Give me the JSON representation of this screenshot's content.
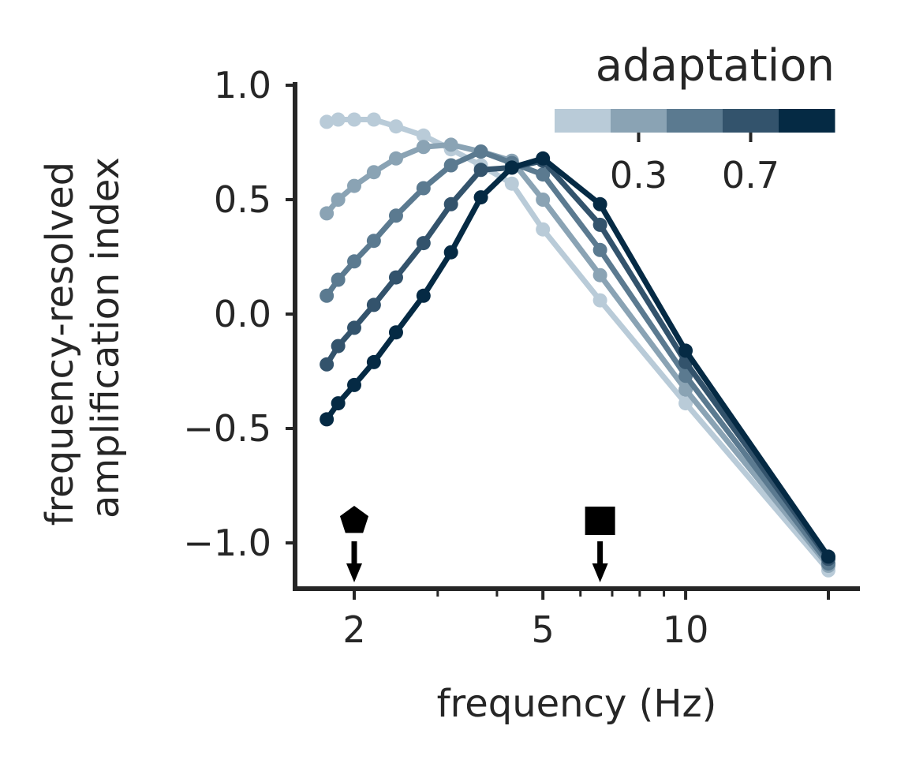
{
  "chart_data": {
    "type": "line",
    "title": "",
    "xlabel": "frequency (Hz)",
    "ylabel": [
      "frequency-resolved",
      "amplification index"
    ],
    "x_scale": "log",
    "xlim": [
      1.7,
      20
    ],
    "ylim": [
      -1.2,
      1.0
    ],
    "x_ticks": [
      2,
      5,
      10
    ],
    "x_tick_labels": [
      "2",
      "5",
      "10"
    ],
    "y_ticks": [
      1.0,
      0.5,
      0.0,
      -0.5,
      -1.0
    ],
    "y_tick_labels": [
      "1.0",
      "0.5",
      "0.0",
      "−0.5",
      "−1.0"
    ],
    "grid": false,
    "x": [
      1.75,
      1.85,
      2.0,
      2.2,
      2.45,
      2.8,
      3.2,
      3.7,
      4.3,
      5.0,
      6.6,
      10.0,
      20.0
    ],
    "series": [
      {
        "color": "#b9cbd8",
        "values": [
          0.84,
          0.85,
          0.85,
          0.85,
          0.82,
          0.78,
          0.72,
          0.65,
          0.57,
          0.37,
          0.06,
          -0.39,
          -1.12
        ]
      },
      {
        "color": "#8aa3b4",
        "values": [
          0.44,
          0.5,
          0.56,
          0.62,
          0.68,
          0.73,
          0.74,
          0.71,
          0.67,
          0.5,
          0.17,
          -0.33,
          -1.1
        ]
      },
      {
        "color": "#5b7a90",
        "values": [
          0.08,
          0.15,
          0.23,
          0.32,
          0.43,
          0.55,
          0.65,
          0.71,
          0.66,
          0.61,
          0.28,
          -0.27,
          -1.09
        ]
      },
      {
        "color": "#33536c",
        "values": [
          -0.22,
          -0.14,
          -0.06,
          0.04,
          0.16,
          0.31,
          0.48,
          0.63,
          0.64,
          0.67,
          0.39,
          -0.21,
          -1.07
        ]
      },
      {
        "color": "#052a44",
        "values": [
          -0.46,
          -0.39,
          -0.31,
          -0.21,
          -0.08,
          0.08,
          0.27,
          0.51,
          0.64,
          0.68,
          0.48,
          -0.16,
          -1.06
        ]
      }
    ],
    "markers": [
      {
        "shape": "pentagon",
        "x": 2.0
      },
      {
        "shape": "square",
        "x": 6.6
      }
    ],
    "colorbar": {
      "title": "adaptation",
      "colors": [
        "#b9cbd8",
        "#8aa3b4",
        "#5b7a90",
        "#33536c",
        "#052a44"
      ],
      "ticks": [
        0.3,
        0.7
      ],
      "tick_labels": [
        "0.3",
        "0.7"
      ],
      "range": [
        0,
        1
      ]
    }
  }
}
